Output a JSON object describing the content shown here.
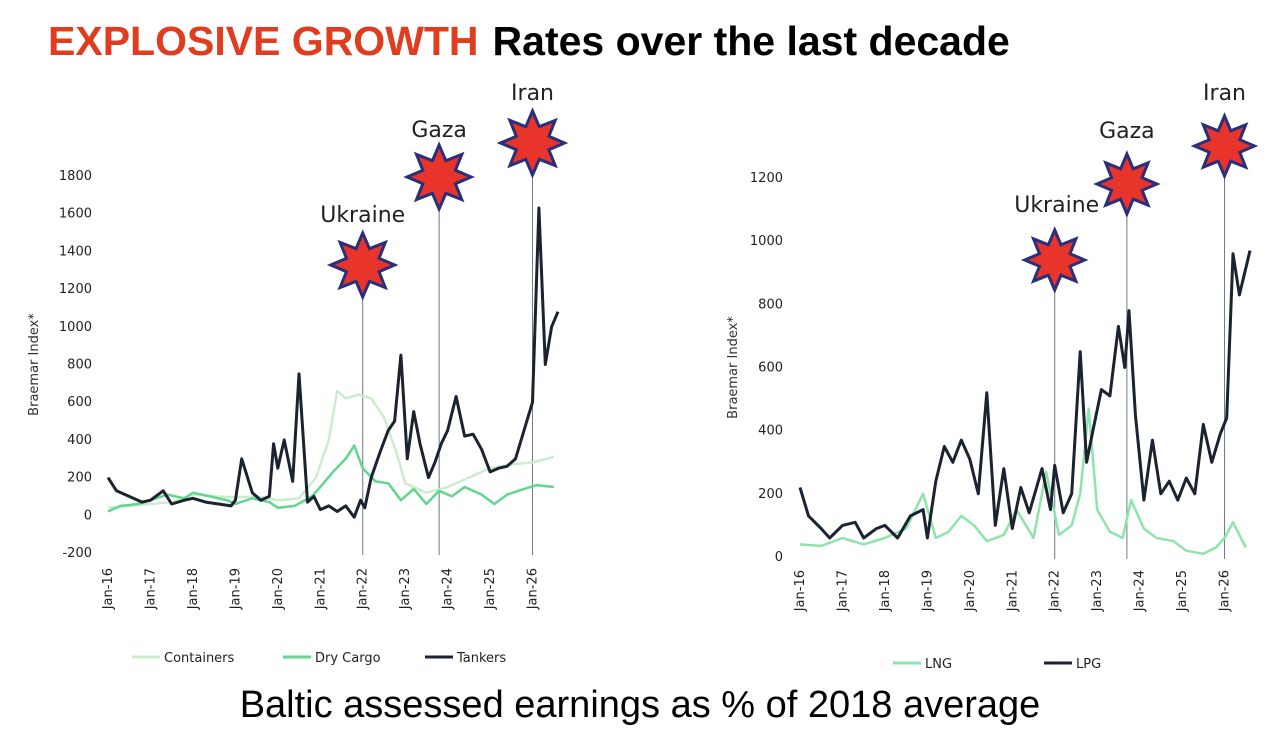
{
  "headline": {
    "accent": "EXPLOSIVE GROWTH",
    "rest": "Rates over the last decade"
  },
  "footer": "Baltic assessed earnings as % of 2018 average",
  "colors": {
    "accent": "#e03c20",
    "star_fill": "#e8342a",
    "star_stroke": "#2a2f7a",
    "tankers": "#1b2230",
    "dry_cargo": "#62d58e",
    "containers": "#cdeccf",
    "lng": "#8fe3ac",
    "lpg": "#1b2230"
  },
  "chart_data": [
    {
      "type": "line",
      "ylabel": "Braemar Index*",
      "ylim": [
        -200,
        1800
      ],
      "yticks": [
        "-200",
        "0",
        "200",
        "400",
        "600",
        "800",
        "1000",
        "1200",
        "1400",
        "1600",
        "1800"
      ],
      "xticks": [
        "Jan-16",
        "Jan-17",
        "Jan-18",
        "Jan-19",
        "Jan-20",
        "Jan-21",
        "Jan-22",
        "Jan-23",
        "Jan-24",
        "Jan-25",
        "Jan-26"
      ],
      "xlim": [
        2016,
        2026.6
      ],
      "legend_position": "bottom",
      "events": [
        {
          "label": "Ukraine",
          "x": 2022.0
        },
        {
          "label": "Gaza",
          "x": 2023.8
        },
        {
          "label": "Iran",
          "x": 2026.0
        }
      ],
      "series": [
        {
          "name": "Containers",
          "color_key": "containers",
          "x": [
            2016,
            2016.5,
            2017,
            2017.5,
            2018,
            2018.5,
            2019,
            2019.5,
            2020,
            2020.5,
            2020.9,
            2021.2,
            2021.4,
            2021.6,
            2021.9,
            2022.2,
            2022.5,
            2022.8,
            2023.0,
            2023.5,
            2024.0,
            2024.5,
            2025.0,
            2025.5,
            2026.0,
            2026.5
          ],
          "y": [
            40,
            50,
            60,
            70,
            110,
            100,
            95,
            100,
            80,
            90,
            200,
            400,
            660,
            620,
            640,
            620,
            520,
            330,
            170,
            120,
            150,
            200,
            250,
            270,
            280,
            310
          ]
        },
        {
          "name": "Dry Cargo",
          "color_key": "dry_cargo",
          "x": [
            2016,
            2016.3,
            2016.7,
            2017,
            2017.4,
            2017.8,
            2018,
            2018.4,
            2018.8,
            2019,
            2019.4,
            2019.8,
            2020,
            2020.4,
            2020.8,
            2021,
            2021.3,
            2021.6,
            2021.8,
            2022.0,
            2022.3,
            2022.6,
            2022.9,
            2023.2,
            2023.5,
            2023.8,
            2024.1,
            2024.4,
            2024.8,
            2025.1,
            2025.4,
            2025.8,
            2026.1,
            2026.5
          ],
          "y": [
            20,
            50,
            60,
            80,
            110,
            90,
            120,
            100,
            80,
            60,
            90,
            70,
            40,
            50,
            100,
            150,
            230,
            300,
            370,
            250,
            180,
            170,
            80,
            140,
            60,
            130,
            100,
            150,
            110,
            60,
            110,
            140,
            160,
            150
          ]
        },
        {
          "name": "Tankers",
          "color_key": "tankers",
          "x": [
            2016,
            2016.2,
            2016.5,
            2016.8,
            2017,
            2017.3,
            2017.5,
            2017.8,
            2018,
            2018.3,
            2018.6,
            2018.9,
            2019.0,
            2019.15,
            2019.4,
            2019.6,
            2019.8,
            2019.9,
            2020.0,
            2020.15,
            2020.35,
            2020.5,
            2020.7,
            2020.85,
            2021.0,
            2021.2,
            2021.4,
            2021.6,
            2021.8,
            2021.95,
            2022.05,
            2022.2,
            2022.4,
            2022.6,
            2022.75,
            2022.9,
            2023.05,
            2023.2,
            2023.35,
            2023.55,
            2023.7,
            2023.85,
            2024.0,
            2024.2,
            2024.4,
            2024.6,
            2024.8,
            2025.0,
            2025.2,
            2025.4,
            2025.6,
            2025.8,
            2026.0,
            2026.15,
            2026.3,
            2026.45,
            2026.6
          ],
          "y": [
            200,
            130,
            100,
            70,
            80,
            130,
            60,
            80,
            90,
            70,
            60,
            50,
            80,
            300,
            120,
            80,
            100,
            380,
            250,
            400,
            180,
            750,
            70,
            100,
            30,
            50,
            20,
            50,
            -10,
            80,
            40,
            200,
            330,
            450,
            500,
            850,
            300,
            550,
            380,
            200,
            280,
            380,
            450,
            630,
            420,
            430,
            350,
            230,
            250,
            260,
            300,
            450,
            600,
            1630,
            800,
            1000,
            1080
          ]
        }
      ]
    },
    {
      "type": "line",
      "ylabel": "Braemar Index*",
      "ylim": [
        0,
        1200
      ],
      "yticks": [
        "0",
        "200",
        "400",
        "600",
        "800",
        "1000",
        "1200"
      ],
      "xticks": [
        "Jan-16",
        "Jan-17",
        "Jan-18",
        "Jan-19",
        "Jan-20",
        "Jan-21",
        "Jan-22",
        "Jan-23",
        "Jan-24",
        "Jan-25",
        "Jan-26"
      ],
      "xlim": [
        2016,
        2026.6
      ],
      "legend_position": "bottom",
      "events": [
        {
          "label": "Ukraine",
          "x": 2022.0
        },
        {
          "label": "Gaza",
          "x": 2023.7
        },
        {
          "label": "Iran",
          "x": 2026.0
        }
      ],
      "series": [
        {
          "name": "LNG",
          "color_key": "lng",
          "x": [
            2016,
            2016.5,
            2017,
            2017.5,
            2018,
            2018.5,
            2018.9,
            2019.2,
            2019.5,
            2019.8,
            2020.1,
            2020.4,
            2020.8,
            2021.1,
            2021.5,
            2021.8,
            2022.1,
            2022.4,
            2022.6,
            2022.8,
            2023.0,
            2023.3,
            2023.6,
            2023.8,
            2024.1,
            2024.4,
            2024.8,
            2025.1,
            2025.5,
            2025.8,
            2026.0,
            2026.2,
            2026.5
          ],
          "y": [
            40,
            35,
            60,
            40,
            60,
            90,
            200,
            60,
            80,
            130,
            100,
            50,
            70,
            150,
            60,
            270,
            70,
            100,
            200,
            470,
            150,
            80,
            60,
            180,
            90,
            60,
            50,
            20,
            10,
            30,
            60,
            110,
            30
          ]
        },
        {
          "name": "LPG",
          "color_key": "lpg",
          "x": [
            2016,
            2016.2,
            2016.5,
            2016.7,
            2017,
            2017.3,
            2017.5,
            2017.8,
            2018,
            2018.3,
            2018.6,
            2018.9,
            2019.0,
            2019.2,
            2019.4,
            2019.6,
            2019.8,
            2020.0,
            2020.2,
            2020.4,
            2020.6,
            2020.8,
            2021.0,
            2021.2,
            2021.4,
            2021.7,
            2021.9,
            2022.0,
            2022.2,
            2022.4,
            2022.6,
            2022.75,
            2022.9,
            2023.1,
            2023.3,
            2023.5,
            2023.65,
            2023.75,
            2023.9,
            2024.1,
            2024.3,
            2024.5,
            2024.7,
            2024.9,
            2025.1,
            2025.3,
            2025.5,
            2025.7,
            2025.9,
            2026.05,
            2026.2,
            2026.35,
            2026.6
          ],
          "y": [
            220,
            130,
            90,
            60,
            100,
            110,
            60,
            90,
            100,
            60,
            130,
            150,
            60,
            240,
            350,
            300,
            370,
            310,
            200,
            520,
            100,
            280,
            90,
            220,
            140,
            280,
            150,
            290,
            140,
            200,
            650,
            300,
            400,
            530,
            510,
            730,
            600,
            780,
            450,
            180,
            370,
            200,
            240,
            180,
            250,
            200,
            420,
            300,
            390,
            440,
            960,
            830,
            970
          ]
        }
      ]
    }
  ]
}
